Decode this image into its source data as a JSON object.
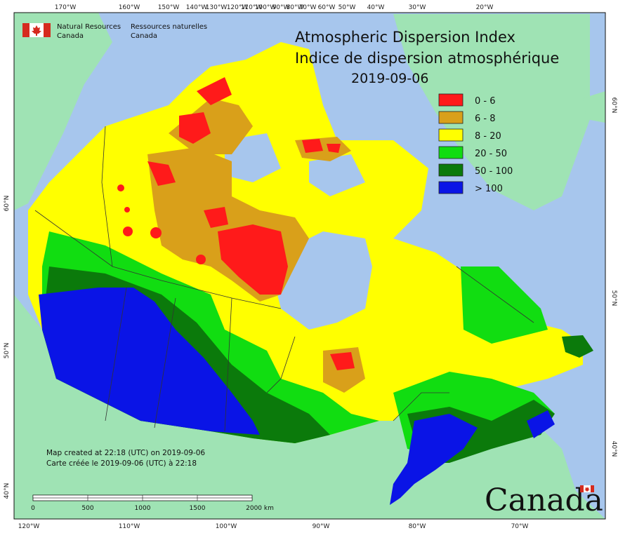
{
  "agency": {
    "name_en_line1": "Natural Resources",
    "name_en_line2": "Canada",
    "name_fr_line1": "Ressources naturelles",
    "name_fr_line2": "Canada"
  },
  "title": {
    "en": "Atmospheric Dispersion Index",
    "fr": "Indice de dispersion atmosphérique",
    "date": "2019-09-06"
  },
  "legend": [
    {
      "label": "0 - 6",
      "color": "#ff1a1a"
    },
    {
      "label": "6 - 8",
      "color": "#d9a01a"
    },
    {
      "label": "8 - 20",
      "color": "#ffff00"
    },
    {
      "label": "20 - 50",
      "color": "#11dd11"
    },
    {
      "label": "50 - 100",
      "color": "#0b7a0b"
    },
    {
      "label": "> 100",
      "color": "#0a14e6"
    }
  ],
  "credits": {
    "line_en": "Map created at 22:18 (UTC) on 2019-09-06",
    "line_fr": "Carte créée le 2019-09-06 (UTC) à 22:18"
  },
  "scale_bar": {
    "labels": [
      "0",
      "500",
      "1000",
      "1500",
      "2000 km"
    ]
  },
  "wordmark": "Canada",
  "graticule": {
    "top": [
      "170°W",
      "160°W",
      "150°W",
      "140°W",
      "130°W",
      "120°W",
      "110°W",
      "100°W",
      "90°W",
      "80°W",
      "70°W",
      "60°W",
      "50°W",
      "40°W",
      "30°W",
      "20°W"
    ],
    "bottom": [
      "120°W",
      "110°W",
      "100°W",
      "90°W",
      "80°W",
      "70°W"
    ],
    "left": [
      "60°N",
      "50°N",
      "40°N"
    ],
    "right": [
      "60°N",
      "50°N",
      "40°N"
    ]
  },
  "colors": {
    "ocean": "#a7c6ed",
    "land_foreign": "#9fe3b4",
    "boundary": "#333333"
  }
}
